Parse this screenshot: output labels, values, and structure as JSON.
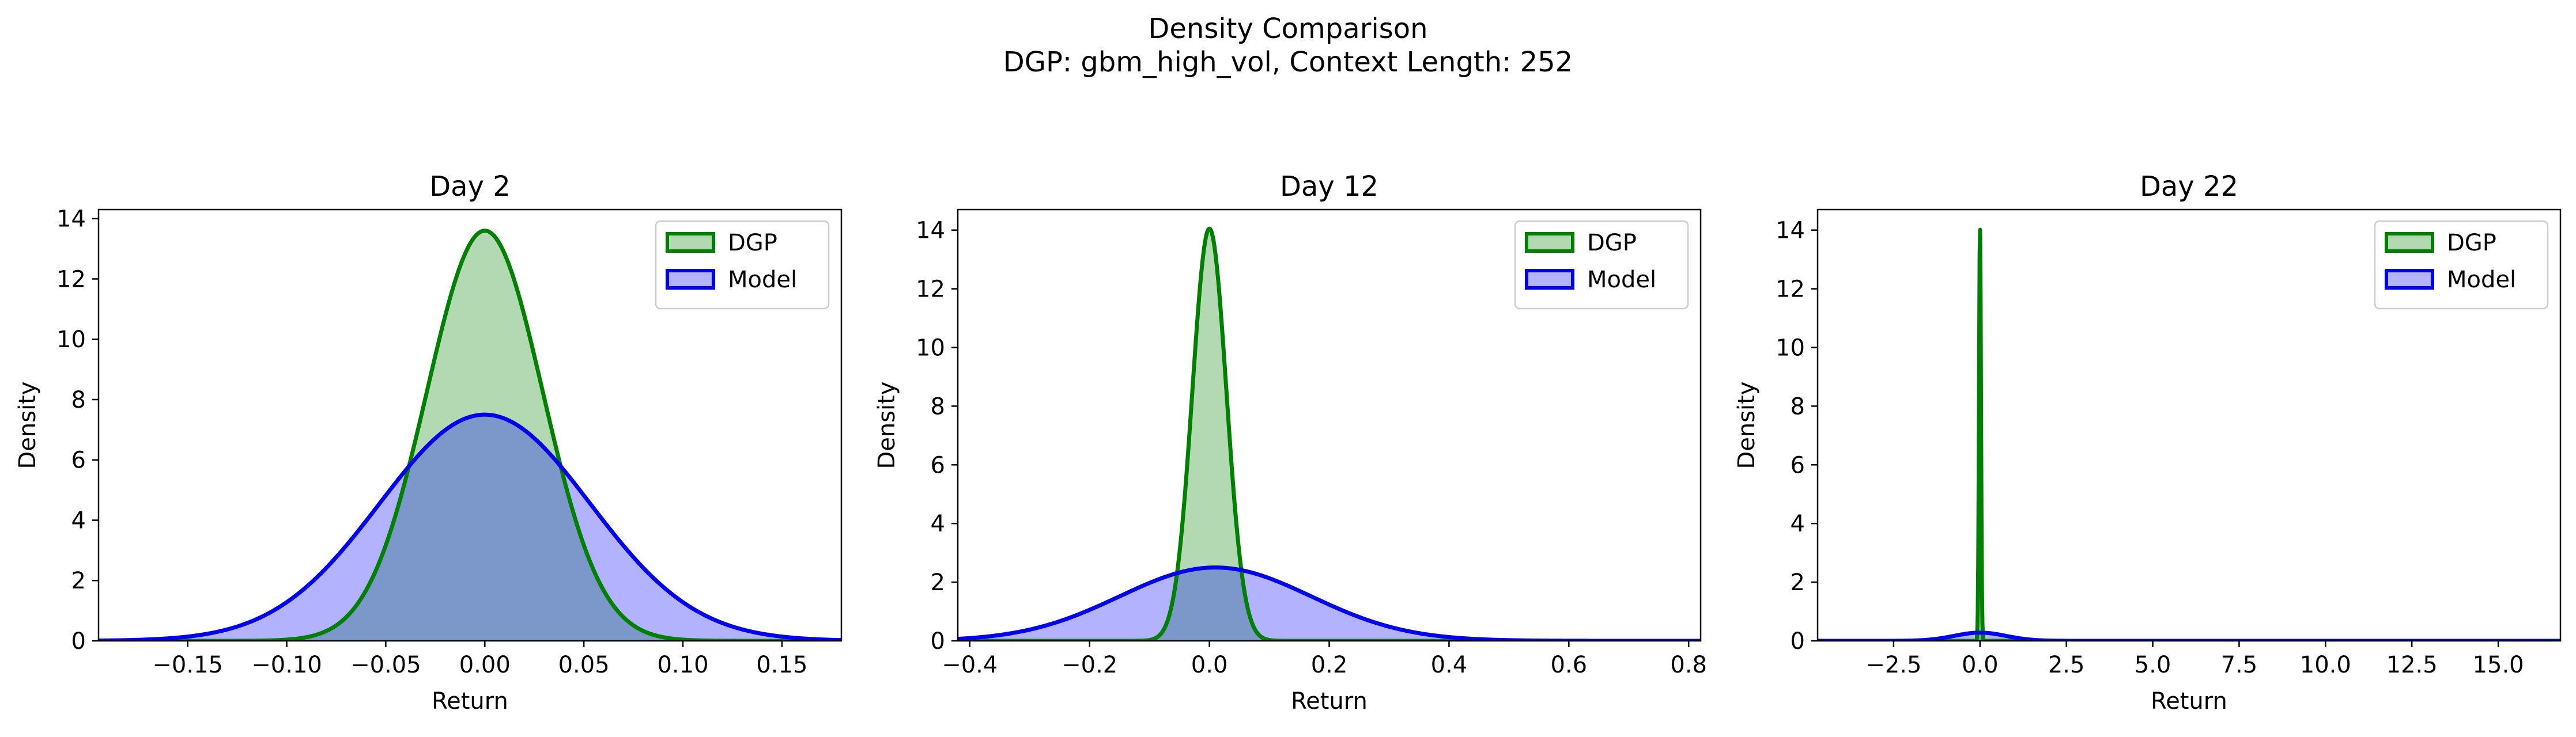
{
  "title": "Density Comparison",
  "subtitle": "DGP: gbm_high_vol, Context Length: 252",
  "colors": {
    "dgp_line": "#008000",
    "dgp_fill": "#b3d9b3",
    "model_line": "#0000ee",
    "model_fill": "#b3b3ff",
    "overlap": "#8099c9"
  },
  "chart_data": [
    {
      "type": "area",
      "title": "Day 2",
      "xlabel": "Return",
      "ylabel": "Density",
      "xlim": [
        -0.195,
        0.18
      ],
      "ylim": [
        0,
        14.3
      ],
      "xticks": [
        -0.15,
        -0.1,
        -0.05,
        0.0,
        0.05,
        0.1,
        0.15
      ],
      "xtick_labels": [
        "−0.15",
        "−0.10",
        "−0.05",
        "0.00",
        "0.05",
        "0.10",
        "0.15"
      ],
      "yticks": [
        0,
        2,
        4,
        6,
        8,
        10,
        12,
        14
      ],
      "ytick_labels": [
        "0",
        "2",
        "4",
        "6",
        "8",
        "10",
        "12",
        "14"
      ],
      "legend_position": "top-right",
      "series": [
        {
          "name": "DGP",
          "peak_density": 13.6,
          "mean": 0.0,
          "std": 0.0293
        },
        {
          "name": "Model",
          "peak_density": 7.5,
          "mean": 0.0,
          "std": 0.0532
        }
      ]
    },
    {
      "type": "area",
      "title": "Day 12",
      "xlabel": "Return",
      "ylabel": "Density",
      "xlim": [
        -0.42,
        0.82
      ],
      "ylim": [
        0,
        14.7
      ],
      "xticks": [
        -0.4,
        -0.2,
        0.0,
        0.2,
        0.4,
        0.6,
        0.8
      ],
      "xtick_labels": [
        "−0.4",
        "−0.2",
        "0.0",
        "0.2",
        "0.4",
        "0.6",
        "0.8"
      ],
      "yticks": [
        0,
        2,
        4,
        6,
        8,
        10,
        12,
        14
      ],
      "ytick_labels": [
        "0",
        "2",
        "4",
        "6",
        "8",
        "10",
        "12",
        "14"
      ],
      "legend_position": "top-right",
      "series": [
        {
          "name": "DGP",
          "peak_density": 14.05,
          "mean": 0.0,
          "std": 0.0284
        },
        {
          "name": "Model",
          "peak_density": 2.5,
          "mean": 0.01,
          "std": 0.16
        }
      ]
    },
    {
      "type": "area",
      "title": "Day 22",
      "xlabel": "Return",
      "ylabel": "Density",
      "xlim": [
        -4.7,
        16.8
      ],
      "ylim": [
        0,
        14.7
      ],
      "xticks": [
        -2.5,
        0.0,
        2.5,
        5.0,
        7.5,
        10.0,
        12.5,
        15.0
      ],
      "xtick_labels": [
        "−2.5",
        "0.0",
        "2.5",
        "5.0",
        "7.5",
        "10.0",
        "12.5",
        "15.0"
      ],
      "yticks": [
        0,
        2,
        4,
        6,
        8,
        10,
        12,
        14
      ],
      "ytick_labels": [
        "0",
        "2",
        "4",
        "6",
        "8",
        "10",
        "12",
        "14"
      ],
      "legend_position": "top-right",
      "series": [
        {
          "name": "DGP",
          "peak_density": 14.1,
          "mean": 0.0,
          "std": 0.028
        },
        {
          "name": "Model",
          "peak_density": 0.28,
          "mean": 0.0,
          "std": 0.75
        }
      ]
    }
  ]
}
